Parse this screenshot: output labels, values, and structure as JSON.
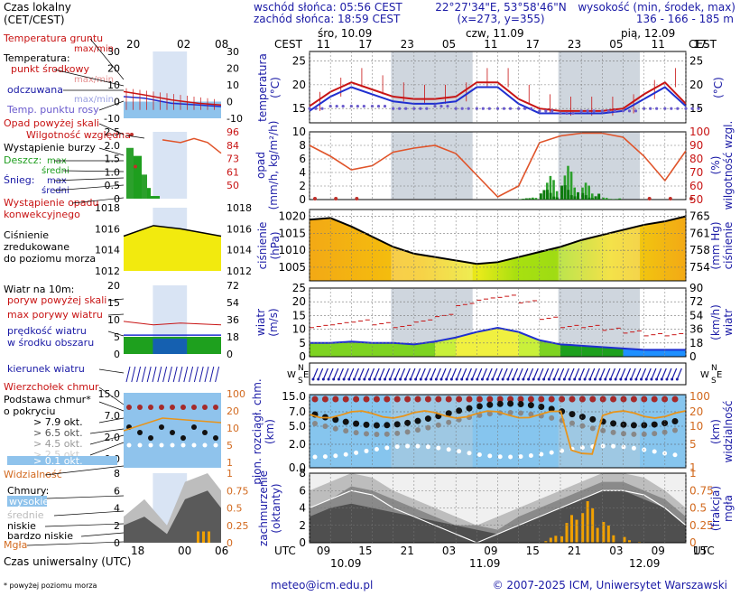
{
  "colors": {
    "blue": "#1a1aa6",
    "red": "#c81414",
    "orange": "#d2691e",
    "green": "#1e9e1e",
    "sky": "#86c5ee",
    "night": "#cfd6de",
    "dark": "#4a4a4a"
  },
  "header": {
    "sunrise": "wschód słońca: 05:56 CEST",
    "sunset": "zachód słońca: 18:59 CEST",
    "coords": "22°27'34\"E, 53°58'46\"N",
    "grid": "(x=273, y=355)",
    "altitude_label": "wysokość (min, środek, max)",
    "altitude_values": "136 - 166 - 185 m"
  },
  "legend": {
    "time_local": "Czas lokalny\n(CET/CEST)",
    "soil_temp": "Temperatura gruntu",
    "max_min": "max/min",
    "temperature": "Temperatura:",
    "midpoint": "punkt środkowy",
    "max_min2": "max/min",
    "perceived": "odczuwana",
    "perceived_maxmin": "max/min",
    "dewpoint": "Temp. punktu rosy",
    "precip_over": "Opad powyżej skali",
    "humidity": "Wilgotność względna",
    "storm": "Wystąpienie burzy",
    "rain": "Deszcz:",
    "rain_max": "max",
    "rain_mean": "średni",
    "snow": "Śnieg:",
    "snow_max": "max",
    "snow_mean": "średni",
    "conv": "Wystąpienie opadu\nkonwekcyjnego",
    "pressure": "Ciśnienie\nzredukowane\ndo poziomu morza",
    "wind10": "Wiatr na 10m:",
    "gust_over": "poryw powyżej skali",
    "gust_max": "max porywy wiatru",
    "wind_mean": "prędkość wiatru\nw środku obszaru",
    "wind_dir": "kierunek wiatru",
    "cloud_top": "Wierzchołek chmur",
    "cloud_base": "Podstawa chmur*\no pokryciu",
    "okt79": "> 7.9 okt.",
    "okt65": "> 6.5 okt.",
    "okt45": "> 4.5 okt.",
    "okt25": "> 2.5 okt.",
    "okt01": "> 0.1 okt.",
    "visibility": "Widzialność",
    "clouds": "Chmury:",
    "high": "wysokie",
    "mid": "średnie",
    "low": "niskie",
    "verylow": "bardzo niskie",
    "fog": "Mgła",
    "utc_time": "Czas uniwersalny (UTC)",
    "footnote": "* powyżej poziomu morza",
    "top_hours": [
      "20",
      "02",
      "08"
    ],
    "bottom_hours": [
      "18",
      "00",
      "06"
    ]
  },
  "axes": {
    "cest": "CEST",
    "utc": "UTC",
    "days_top": [
      "śro, 10.09",
      "czw, 11.09",
      "pią, 12.09"
    ],
    "days_bottom": [
      "10.09",
      "11.09",
      "12.09"
    ],
    "top_hours": [
      "11",
      "17",
      "23",
      "05",
      "11",
      "17",
      "23",
      "05",
      "11",
      "17"
    ],
    "bottom_hours": [
      "09",
      "15",
      "21",
      "03",
      "09",
      "15",
      "21",
      "03",
      "09",
      "15"
    ],
    "temp_label": "temperatura\n(°C)",
    "precip_label": "opad\n(mm/h, kg/m²/h)",
    "hum_label": "(%)\nwilgotność wzgl.",
    "press_label": "ciśnienie\n(hPa)",
    "press_r_label": "(mm Hg)\nciśnienie",
    "wind_label": "wiatr\n(m/s)",
    "wind_r_label": "(km/h)\nwiatr",
    "cloudbase_label": "pion. rozciągł. chm.\n(km)",
    "vis_label": "(km)\nwidzialność",
    "cover_label": "zachmurzenie\n(oktanty)",
    "fog_label": "(frakcja)\nmgła",
    "compass": "NWSE"
  },
  "ticks": {
    "temp_l": [
      "25",
      "20",
      "15"
    ],
    "temp_r": [
      "25",
      "20",
      "15"
    ],
    "precip_l": [
      "10",
      "8",
      "6",
      "4",
      "2",
      "0"
    ],
    "hum_r": [
      "100",
      "90",
      "80",
      "70",
      "60",
      "50"
    ],
    "press_l": [
      "1020",
      "1015",
      "1010",
      "1005"
    ],
    "press_r": [
      "765",
      "761",
      "758",
      "754"
    ],
    "wind_l": [
      "25",
      "20",
      "15",
      "10",
      "5",
      "0"
    ],
    "wind_r": [
      "90",
      "72",
      "54",
      "36",
      "18",
      "0"
    ],
    "cb_l": [
      "15.0",
      "7.0",
      "5.0",
      "2.0",
      "0.0"
    ],
    "vis_r": [
      "100",
      "20",
      "10",
      "5",
      "1"
    ],
    "cov_l": [
      "8",
      "6",
      "4",
      "2",
      "0"
    ],
    "fog_r": [
      "1",
      "0.75",
      "0.5",
      "0.25",
      "0"
    ],
    "mini_soil": [
      "30",
      "20",
      "10",
      "0",
      "-10"
    ],
    "mini_precip_l": [
      "2.5",
      "2.0",
      "1.5",
      "1.0",
      "0.5",
      "0"
    ],
    "mini_hum": [
      "96",
      "84",
      "73",
      "61",
      "50"
    ],
    "mini_press": [
      "1018",
      "1016",
      "1014",
      "1012"
    ],
    "mini_wind_l": [
      "20",
      "15",
      "10",
      "5",
      "0"
    ],
    "mini_wind_r": [
      "72",
      "54",
      "36",
      "18",
      "0"
    ],
    "mini_cb": [
      "15.0",
      "7.0",
      "2.0",
      "0.0"
    ],
    "mini_vis": [
      "100",
      "20",
      "10",
      "5",
      "1"
    ],
    "mini_cov_l": [
      "8",
      "6",
      "4",
      "2",
      "0"
    ],
    "mini_fog": [
      "1",
      "0.75",
      "0.5",
      "0.25",
      "0"
    ]
  },
  "footer": {
    "email": "meteo@icm.edu.pl",
    "copyright": "© 2007-2025 ICM, Uniwersytet Warszawski"
  },
  "chart_data": {
    "type": "line",
    "time_utc_hours_from_0900_10.09": [
      0,
      3,
      6,
      9,
      12,
      15,
      18,
      21,
      24,
      27,
      30,
      33,
      36,
      39,
      42,
      45,
      48,
      51,
      54
    ],
    "series": [
      {
        "name": "punkt środkowy",
        "values": [
          15.5,
          18.5,
          20.5,
          19,
          17.5,
          17,
          17,
          17.5,
          20.5,
          20.5,
          17,
          15,
          14.5,
          14.5,
          14.5,
          15,
          18,
          20.5,
          16
        ]
      },
      {
        "name": "odczuwana",
        "values": [
          14.5,
          17.5,
          19.5,
          18,
          16.5,
          16,
          16,
          16.5,
          19.5,
          19.5,
          16,
          14,
          14,
          14,
          14,
          14.5,
          17,
          19.5,
          15.5
        ]
      },
      {
        "name": "Temp. punktu rosy",
        "values": [
          15,
          15.5,
          15.5,
          15.5,
          15,
          15,
          15.5,
          15,
          15,
          15,
          15,
          14.5,
          14,
          14.5,
          14.5,
          14.5,
          15,
          15,
          15
        ]
      },
      {
        "name": "Wilgotność względna",
        "values": [
          90,
          82,
          72,
          75,
          85,
          88,
          90,
          84,
          68,
          52,
          60,
          92,
          97,
          99,
          99,
          96,
          82,
          64,
          86
        ]
      },
      {
        "name": "ciśnienie",
        "values": [
          1019,
          1019.5,
          1017,
          1014,
          1011,
          1009,
          1008,
          1007,
          1006,
          1006.5,
          1008,
          1009.5,
          1011,
          1013,
          1014.5,
          1016,
          1017.5,
          1018.5,
          1020
        ]
      },
      {
        "name": "prędkość wiatru",
        "values": [
          5,
          5,
          5.5,
          5,
          5,
          4.5,
          5.5,
          7,
          9,
          10.5,
          9,
          6,
          4.5,
          4,
          3.5,
          3,
          2.5,
          2.5,
          2.5
        ]
      },
      {
        "name": "max porywy wiatru",
        "values": [
          11,
          12,
          13,
          12,
          11,
          13,
          15,
          19,
          21,
          22,
          20,
          14,
          11,
          11,
          10,
          9,
          8,
          8,
          7
        ]
      }
    ],
    "precip_max_mm_h": [
      0,
      0,
      0,
      0,
      0,
      0,
      0,
      0,
      0,
      0,
      0.3,
      3.5,
      5.0,
      2.5,
      0.3,
      0,
      0,
      0,
      0
    ],
    "precip_mean_mm_h": [
      0,
      0,
      0,
      0,
      0,
      0,
      0,
      0,
      0,
      0,
      0.2,
      1.5,
      2.2,
      1.0,
      0.1,
      0,
      0,
      0,
      0
    ],
    "fog_fraction": [
      0,
      0,
      0,
      0,
      0,
      0,
      0,
      0,
      0,
      0,
      0,
      0.1,
      0.4,
      0.6,
      0.3,
      0.1,
      0,
      0,
      0
    ],
    "ylim": {
      "temperature": [
        12,
        27
      ],
      "precip": [
        0,
        10
      ],
      "humidity": [
        50,
        100
      ],
      "pressure": [
        1001,
        1022
      ],
      "wind": [
        0,
        25
      ]
    }
  }
}
